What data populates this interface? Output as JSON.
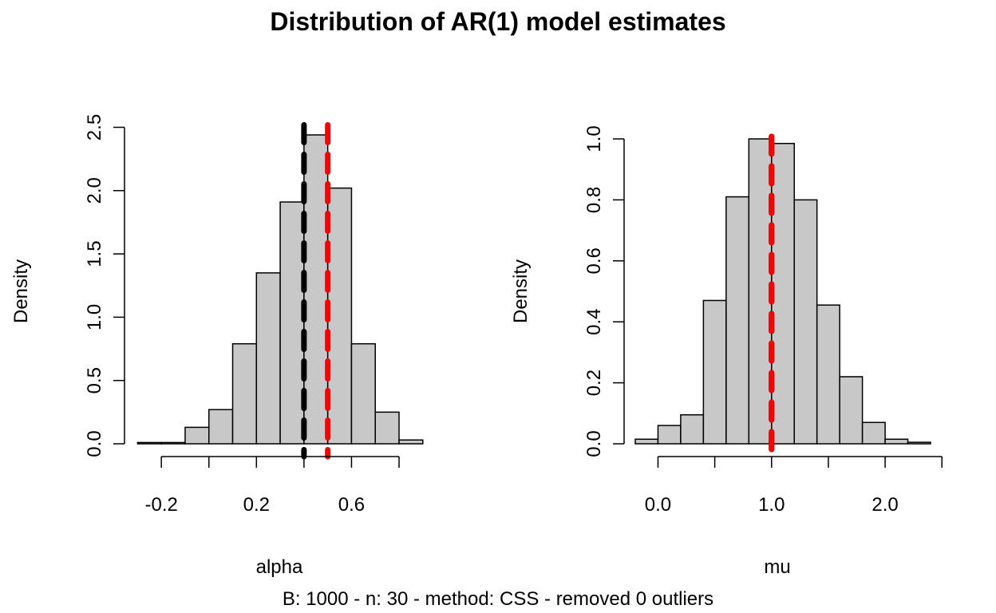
{
  "title": "Distribution of AR(1) model estimates",
  "caption": "B: 1000 - n: 30 - method: CSS - removed 0 outliers",
  "colors": {
    "bar_fill": "#c8c8c8",
    "bar_stroke": "#000000",
    "line_black": "#000000",
    "line_red": "#ff0000"
  },
  "chart_data": [
    {
      "type": "bar",
      "subtype": "histogram",
      "xlabel": "alpha",
      "ylabel": "Density",
      "xlim": [
        -0.3,
        0.9
      ],
      "ylim": [
        0,
        2.5
      ],
      "xticks": [
        -0.2,
        0.0,
        0.2,
        0.4,
        0.6,
        0.8
      ],
      "xtick_labels": [
        "-0.2",
        "",
        "0.2",
        "",
        "0.6",
        ""
      ],
      "yticks": [
        0.0,
        0.5,
        1.0,
        1.5,
        2.0,
        2.5
      ],
      "ytick_labels": [
        "0.0",
        "0.5",
        "1.0",
        "1.5",
        "2.0",
        "2.5"
      ],
      "bin_edges": [
        -0.3,
        -0.2,
        -0.1,
        0.0,
        0.1,
        0.2,
        0.3,
        0.4,
        0.5,
        0.6,
        0.7,
        0.8,
        0.9
      ],
      "values": [
        0.01,
        0.01,
        0.13,
        0.27,
        0.79,
        1.35,
        1.91,
        2.44,
        2.02,
        0.79,
        0.25,
        0.03
      ],
      "vlines": [
        {
          "x": 0.4,
          "color": "#000000",
          "style": "dashed"
        },
        {
          "x": 0.5,
          "color": "#ff0000",
          "style": "dashed"
        }
      ]
    },
    {
      "type": "bar",
      "subtype": "histogram",
      "xlabel": "mu",
      "ylabel": "Density",
      "xlim": [
        -0.2,
        2.4
      ],
      "ylim": [
        0,
        1.0
      ],
      "xticks": [
        0.0,
        0.5,
        1.0,
        1.5,
        2.0,
        2.5
      ],
      "xtick_labels": [
        "0.0",
        "",
        "1.0",
        "",
        "2.0",
        ""
      ],
      "yticks": [
        0.0,
        0.2,
        0.4,
        0.6,
        0.8,
        1.0
      ],
      "ytick_labels": [
        "0.0",
        "0.2",
        "0.4",
        "0.6",
        "0.8",
        "1.0"
      ],
      "bin_edges": [
        -0.2,
        0.0,
        0.2,
        0.4,
        0.6,
        0.8,
        1.0,
        1.2,
        1.4,
        1.6,
        1.8,
        2.0,
        2.2,
        2.4
      ],
      "values": [
        0.015,
        0.06,
        0.095,
        0.47,
        0.81,
        1.0,
        0.985,
        0.8,
        0.455,
        0.22,
        0.07,
        0.015,
        0.005
      ],
      "vlines": [
        {
          "x": 1.0,
          "color": "#000000",
          "style": "dashed"
        },
        {
          "x": 1.0,
          "color": "#ff0000",
          "style": "dashed"
        }
      ]
    }
  ]
}
